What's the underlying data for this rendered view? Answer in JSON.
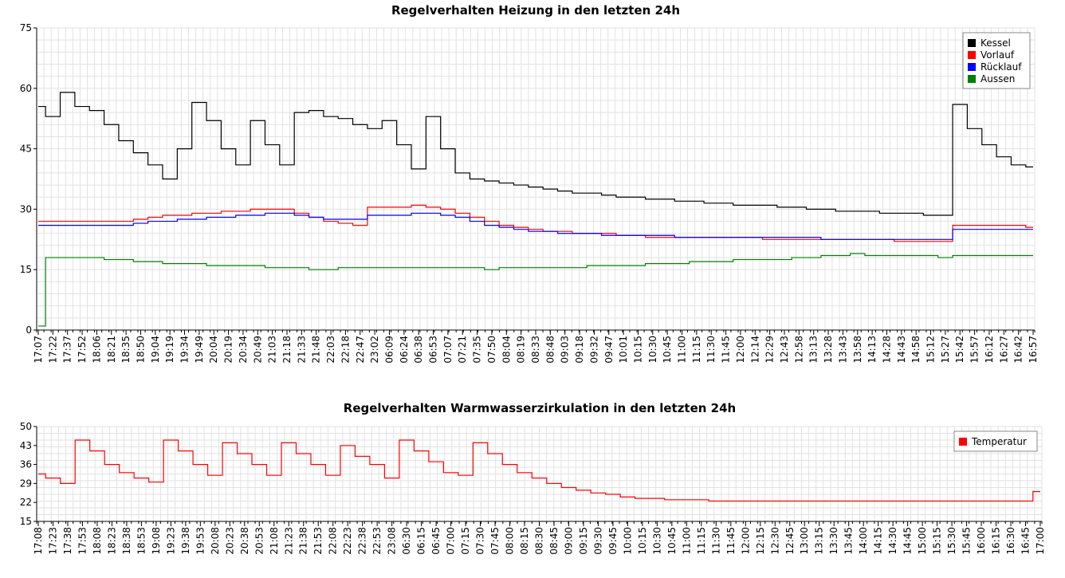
{
  "chart_data": [
    {
      "type": "line",
      "title": "Regelverhalten Heizung in den letzten 24h",
      "xlabel": "",
      "ylabel": "",
      "ylim": [
        0,
        75
      ],
      "yticks": [
        "0",
        "15",
        "30",
        "45",
        "60",
        "75"
      ],
      "x": [
        "17:07",
        "17:22",
        "17:37",
        "17:52",
        "18:06",
        "18:21",
        "18:35",
        "18:50",
        "19:04",
        "19:19",
        "19:34",
        "19:49",
        "20:04",
        "20:19",
        "20:34",
        "20:49",
        "21:03",
        "21:18",
        "21:33",
        "21:48",
        "22:03",
        "22:18",
        "22:47",
        "23:02",
        "06:09",
        "06:24",
        "06:38",
        "06:53",
        "07:07",
        "07:21",
        "07:35",
        "07:50",
        "08:04",
        "08:19",
        "08:33",
        "08:48",
        "09:03",
        "09:18",
        "09:32",
        "09:47",
        "10:01",
        "10:15",
        "10:30",
        "10:45",
        "11:00",
        "11:15",
        "11:30",
        "11:45",
        "12:00",
        "12:14",
        "12:29",
        "12:43",
        "12:58",
        "13:13",
        "13:28",
        "13:43",
        "13:58",
        "14:13",
        "14:28",
        "14:43",
        "14:58",
        "15:12",
        "15:27",
        "15:42",
        "15:57",
        "16:12",
        "16:27",
        "16:42",
        "16:57"
      ],
      "grid": true,
      "legend_position": "top-right",
      "series": [
        {
          "name": "Kessel",
          "color": "#000000",
          "values": [
            55.5,
            53,
            59,
            55.5,
            54.5,
            51,
            47,
            44,
            41,
            37.5,
            45,
            56.5,
            52,
            45,
            41,
            52,
            46,
            41,
            54,
            54.5,
            53,
            52.5,
            51,
            50,
            52,
            46,
            40,
            53,
            45,
            39,
            37.5,
            37,
            36.5,
            36,
            35.5,
            35,
            34.5,
            34,
            34,
            33.5,
            33,
            33,
            32.5,
            32.5,
            32,
            32,
            31.5,
            31.5,
            31,
            31,
            31,
            30.5,
            30.5,
            30,
            30,
            29.5,
            29.5,
            29.5,
            29,
            29,
            29,
            28.5,
            28.5,
            56,
            50,
            46,
            43,
            41,
            40.5
          ]
        },
        {
          "name": "Vorlauf",
          "color": "#ff0000",
          "values": [
            27,
            27,
            27,
            27,
            27,
            27,
            27,
            27.5,
            28,
            28.5,
            28.5,
            29,
            29,
            29.5,
            29.5,
            30,
            30,
            30,
            29,
            28,
            27,
            26.5,
            26,
            30.5,
            30.5,
            30.5,
            31,
            30.5,
            30,
            29,
            28,
            27,
            26,
            25.5,
            25,
            24.5,
            24.5,
            24,
            24,
            24,
            23.5,
            23.5,
            23,
            23,
            23,
            23,
            23,
            23,
            23,
            23,
            22.5,
            22.5,
            22.5,
            22.5,
            22.5,
            22.5,
            22.5,
            22.5,
            22.5,
            22,
            22,
            22,
            22,
            26,
            26,
            26,
            26,
            26,
            25.5
          ]
        },
        {
          "name": "Rücklauf",
          "color": "#0000ff",
          "values": [
            26,
            26,
            26,
            26,
            26,
            26,
            26,
            26.5,
            27,
            27,
            27.5,
            27.5,
            28,
            28,
            28.5,
            28.5,
            29,
            29,
            28.5,
            28,
            27.5,
            27.5,
            27.5,
            28.5,
            28.5,
            28.5,
            29,
            29,
            28.5,
            28,
            27,
            26,
            25.5,
            25,
            24.5,
            24.5,
            24,
            24,
            24,
            23.5,
            23.5,
            23.5,
            23.5,
            23.5,
            23,
            23,
            23,
            23,
            23,
            23,
            23,
            23,
            23,
            23,
            22.5,
            22.5,
            22.5,
            22.5,
            22.5,
            22.5,
            22.5,
            22.5,
            22.5,
            25,
            25,
            25,
            25,
            25,
            25
          ]
        },
        {
          "name": "Aussen",
          "color": "#008000",
          "values": [
            1,
            18,
            18,
            18,
            18,
            17.5,
            17.5,
            17,
            17,
            16.5,
            16.5,
            16.5,
            16,
            16,
            16,
            16,
            15.5,
            15.5,
            15.5,
            15,
            15,
            15.5,
            15.5,
            15.5,
            15.5,
            15.5,
            15.5,
            15.5,
            15.5,
            15.5,
            15.5,
            15,
            15.5,
            15.5,
            15.5,
            15.5,
            15.5,
            15.5,
            16,
            16,
            16,
            16,
            16.5,
            16.5,
            16.5,
            17,
            17,
            17,
            17.5,
            17.5,
            17.5,
            17.5,
            18,
            18,
            18.5,
            18.5,
            19,
            18.5,
            18.5,
            18.5,
            18.5,
            18.5,
            18,
            18.5,
            18.5,
            18.5,
            18.5,
            18.5,
            18.5
          ]
        }
      ]
    },
    {
      "type": "line",
      "title": "Regelverhalten Warmwasserzirkulation in den letzten 24h",
      "xlabel": "",
      "ylabel": "",
      "ylim": [
        15,
        50
      ],
      "yticks": [
        "15",
        "22",
        "29",
        "36",
        "43",
        "50"
      ],
      "x": [
        "17:08",
        "17:23",
        "17:38",
        "17:53",
        "18:08",
        "18:23",
        "18:38",
        "18:53",
        "19:08",
        "19:23",
        "19:38",
        "19:53",
        "20:08",
        "20:23",
        "20:38",
        "20:53",
        "21:08",
        "21:23",
        "21:38",
        "21:53",
        "22:08",
        "22:23",
        "22:38",
        "22:53",
        "23:08",
        "06:30",
        "06:15",
        "06:45",
        "07:00",
        "07:15",
        "07:30",
        "07:45",
        "08:00",
        "08:15",
        "08:30",
        "08:45",
        "09:00",
        "09:15",
        "09:30",
        "09:45",
        "10:00",
        "10:15",
        "10:30",
        "10:45",
        "11:00",
        "11:15",
        "11:30",
        "11:45",
        "12:00",
        "12:15",
        "12:30",
        "12:45",
        "13:00",
        "13:15",
        "13:30",
        "13:45",
        "14:00",
        "14:15",
        "14:30",
        "14:45",
        "15:00",
        "15:15",
        "15:30",
        "15:45",
        "16:00",
        "16:15",
        "16:30",
        "16:45",
        "17:00"
      ],
      "grid": true,
      "legend_position": "top-right",
      "series": [
        {
          "name": "Temperatur",
          "color": "#ff0000",
          "values": [
            32.5,
            31,
            29,
            45,
            41,
            36,
            33,
            31,
            29.5,
            45,
            41,
            36,
            32,
            44,
            40,
            36,
            32,
            44,
            40,
            36,
            32,
            43,
            39,
            36,
            31,
            45,
            41,
            37,
            33,
            32,
            44,
            40,
            36,
            33,
            31,
            29,
            27.5,
            26.5,
            25.5,
            25,
            24,
            23.5,
            23.5,
            23,
            23,
            23,
            22.5,
            22.5,
            22.5,
            22.5,
            22.5,
            22.5,
            22.5,
            22.5,
            22.5,
            22.5,
            22.5,
            22.5,
            22.5,
            22.5,
            22.5,
            22.5,
            22.5,
            22.5,
            22.5,
            22.5,
            22.5,
            22.5,
            26
          ]
        }
      ]
    }
  ]
}
